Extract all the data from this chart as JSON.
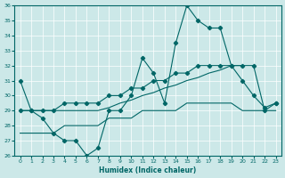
{
  "xlabel": "Humidex (Indice chaleur)",
  "color": "#006666",
  "bg_color": "#cce8e8",
  "grid_color": "#ffffff",
  "ylim": [
    26,
    36
  ],
  "xlim": [
    -0.5,
    23.5
  ],
  "yticks": [
    26,
    27,
    28,
    29,
    30,
    31,
    32,
    33,
    34,
    35,
    36
  ],
  "xticks": [
    0,
    1,
    2,
    3,
    4,
    5,
    6,
    7,
    8,
    9,
    10,
    11,
    12,
    13,
    14,
    15,
    16,
    17,
    18,
    19,
    20,
    21,
    22,
    23
  ],
  "line_main_x": [
    0,
    1,
    2,
    3,
    4,
    5,
    6,
    7,
    8,
    9,
    10,
    11,
    12,
    13,
    14,
    15,
    16,
    17,
    18,
    19,
    20,
    21,
    22,
    23
  ],
  "line_main_y": [
    31,
    29,
    28.5,
    27.5,
    27,
    27,
    26,
    26.5,
    29,
    29,
    30,
    32.5,
    31.5,
    29.5,
    33.5,
    36,
    35,
    34.5,
    34.5,
    32,
    31,
    30,
    29.2,
    29.5
  ],
  "line_upper_x": [
    0,
    1,
    2,
    3,
    4,
    5,
    6,
    7,
    8,
    9,
    10,
    11,
    12,
    13,
    14,
    15,
    16,
    17,
    18,
    19,
    20,
    21,
    22,
    23
  ],
  "line_upper_y": [
    29,
    29,
    29,
    29,
    29.5,
    29.5,
    29.5,
    29.5,
    30,
    30,
    30.5,
    30.5,
    31,
    31,
    31.5,
    31.5,
    32,
    32,
    32,
    32,
    32,
    32,
    29,
    29.5
  ],
  "line_lower_x": [
    0,
    1,
    2,
    3,
    4,
    5,
    6,
    7,
    8,
    9,
    10,
    11,
    12,
    13,
    14,
    15,
    16,
    17,
    18,
    19,
    20,
    21,
    22,
    23
  ],
  "line_lower_y": [
    27.5,
    27.5,
    27.5,
    27.5,
    28,
    28,
    28,
    28,
    28.5,
    28.5,
    28.5,
    29,
    29,
    29,
    29,
    29.5,
    29.5,
    29.5,
    29.5,
    29.5,
    29,
    29,
    29,
    29
  ],
  "line_mid_x": [
    0,
    1,
    2,
    3,
    4,
    5,
    6,
    7,
    8,
    9,
    10,
    11,
    12,
    13,
    14,
    15,
    16,
    17,
    18,
    19,
    20
  ],
  "line_mid_y": [
    29,
    29,
    29,
    29,
    29,
    29,
    29,
    29,
    29.2,
    29.5,
    29.7,
    30,
    30.2,
    30.5,
    30.7,
    31,
    31.2,
    31.5,
    31.7,
    32,
    32
  ]
}
